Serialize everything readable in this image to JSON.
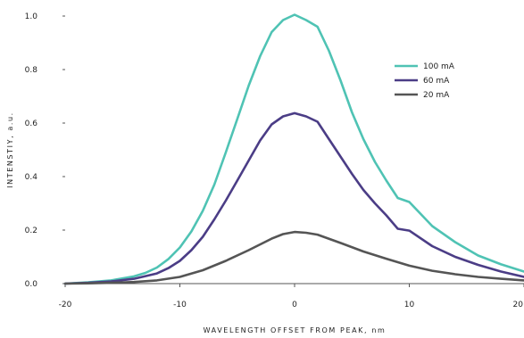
{
  "chart_data": {
    "type": "line",
    "title": "",
    "xlabel": "WAVELENGTH OFFSET FROM PEAK, nm",
    "ylabel": "INTENSTIY, a.u.",
    "xlim": [
      -20,
      20
    ],
    "ylim": [
      0,
      1.0
    ],
    "x_ticks": [
      -20,
      -10,
      0,
      10,
      20
    ],
    "x_tick_labels": [
      "-20",
      "-10",
      "0",
      "10",
      "20"
    ],
    "y_ticks": [
      0,
      0.2,
      0.4,
      0.6,
      0.8,
      1.0
    ],
    "y_tick_labels": [
      "0.0",
      "0.2",
      "0.4",
      "0.6",
      "0.8",
      "1.0"
    ],
    "grid": false,
    "legend_position": "top-right",
    "series": [
      {
        "name": "100 mA",
        "color": "#4fc3b4",
        "x": [
          -20,
          -18,
          -16,
          -14,
          -13,
          -12,
          -11,
          -10,
          -9,
          -8,
          -7,
          -6,
          -5,
          -4,
          -3,
          -2,
          -1,
          0,
          1,
          2,
          3,
          4,
          5,
          6,
          7,
          8,
          9,
          10,
          12,
          14,
          16,
          18,
          20
        ],
        "y": [
          0.0,
          0.005,
          0.012,
          0.027,
          0.04,
          0.06,
          0.092,
          0.135,
          0.195,
          0.272,
          0.37,
          0.49,
          0.615,
          0.74,
          0.85,
          0.94,
          0.985,
          1.005,
          0.985,
          0.96,
          0.87,
          0.76,
          0.64,
          0.54,
          0.455,
          0.385,
          0.32,
          0.305,
          0.215,
          0.155,
          0.105,
          0.072,
          0.045
        ]
      },
      {
        "name": "60 mA",
        "color": "#4b3d86",
        "x": [
          -20,
          -18,
          -16,
          -14,
          -12,
          -11,
          -10,
          -9,
          -8,
          -7,
          -6,
          -5,
          -4,
          -3,
          -2,
          -1,
          0,
          1,
          2,
          3,
          4,
          5,
          6,
          7,
          8,
          9,
          10,
          12,
          14,
          16,
          18,
          20
        ],
        "y": [
          0.0,
          0.003,
          0.008,
          0.018,
          0.038,
          0.058,
          0.085,
          0.125,
          0.175,
          0.24,
          0.31,
          0.385,
          0.46,
          0.535,
          0.595,
          0.625,
          0.637,
          0.625,
          0.605,
          0.54,
          0.475,
          0.41,
          0.35,
          0.3,
          0.255,
          0.205,
          0.198,
          0.14,
          0.1,
          0.07,
          0.045,
          0.025
        ]
      },
      {
        "name": "20 mA",
        "color": "#555555",
        "x": [
          -20,
          -18,
          -16,
          -14,
          -12,
          -10,
          -8,
          -6,
          -4,
          -2,
          -1,
          0,
          1,
          2,
          4,
          6,
          8,
          10,
          12,
          14,
          16,
          18,
          20
        ],
        "y": [
          0.0,
          0.001,
          0.003,
          0.006,
          0.012,
          0.025,
          0.05,
          0.085,
          0.125,
          0.168,
          0.185,
          0.193,
          0.19,
          0.183,
          0.152,
          0.12,
          0.093,
          0.067,
          0.048,
          0.035,
          0.025,
          0.018,
          0.012
        ]
      }
    ]
  }
}
